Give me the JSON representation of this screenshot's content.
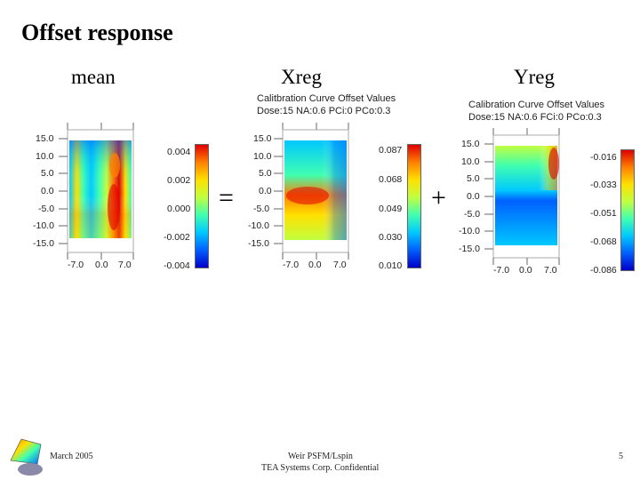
{
  "slide": {
    "title": "Offset response",
    "columns": {
      "mean": "mean",
      "xreg": "Xreg",
      "yreg": "Yreg"
    },
    "operators": {
      "equals": "=",
      "plus": "+"
    },
    "footer": {
      "date": "March 2005",
      "center_line1": "Weir PSFM/Lspin",
      "center_line2": "TEA Systems Corp. Confidential",
      "page_number": "5"
    }
  },
  "plots": {
    "mean": {
      "title_line1": "",
      "title_line2": "",
      "y_ticks": [
        "15.0",
        "10.0",
        "5.0",
        "0.0",
        "-5.0",
        "-10.0",
        "-15.0"
      ],
      "x_ticks": [
        "-7.0",
        "0.0",
        "7.0"
      ],
      "colorbar_ticks": [
        "0.004",
        "0.002",
        "0.000",
        "-0.002",
        "-0.004"
      ]
    },
    "xreg": {
      "title_line1": "Calitbration Curve Offset Values",
      "title_line2": "Dose:15 NA:0.6 PCi:0 PCo:0.3",
      "y_ticks": [
        "15.0",
        "10.0",
        "5.0",
        "0.0",
        "-5.0",
        "-10.0",
        "-15.0"
      ],
      "x_ticks": [
        "-7.0",
        "0.0",
        "7.0"
      ],
      "colorbar_ticks": [
        "0.087",
        "0.068",
        "0.049",
        "0.030",
        "0.010"
      ]
    },
    "yreg": {
      "title_line1": "Calibration Curve Offset Values",
      "title_line2": "Dose:15 NA:0.6 FCi:0 PCo:0.3",
      "y_ticks": [
        "15.0",
        "10.0",
        "5.0",
        "0.0",
        "-5.0",
        "-10.0",
        "-15.0"
      ],
      "x_ticks": [
        "-7.0",
        "0.0",
        "7.0"
      ],
      "colorbar_ticks": [
        "-0.016",
        "-0.033",
        "-0.051",
        "-0.068",
        "-0.086"
      ]
    }
  },
  "colors": {
    "colormap": [
      "#0000c8",
      "#0060ff",
      "#00c8ff",
      "#40ffb0",
      "#c0ff40",
      "#ffe000",
      "#ff8000",
      "#e00000"
    ]
  }
}
